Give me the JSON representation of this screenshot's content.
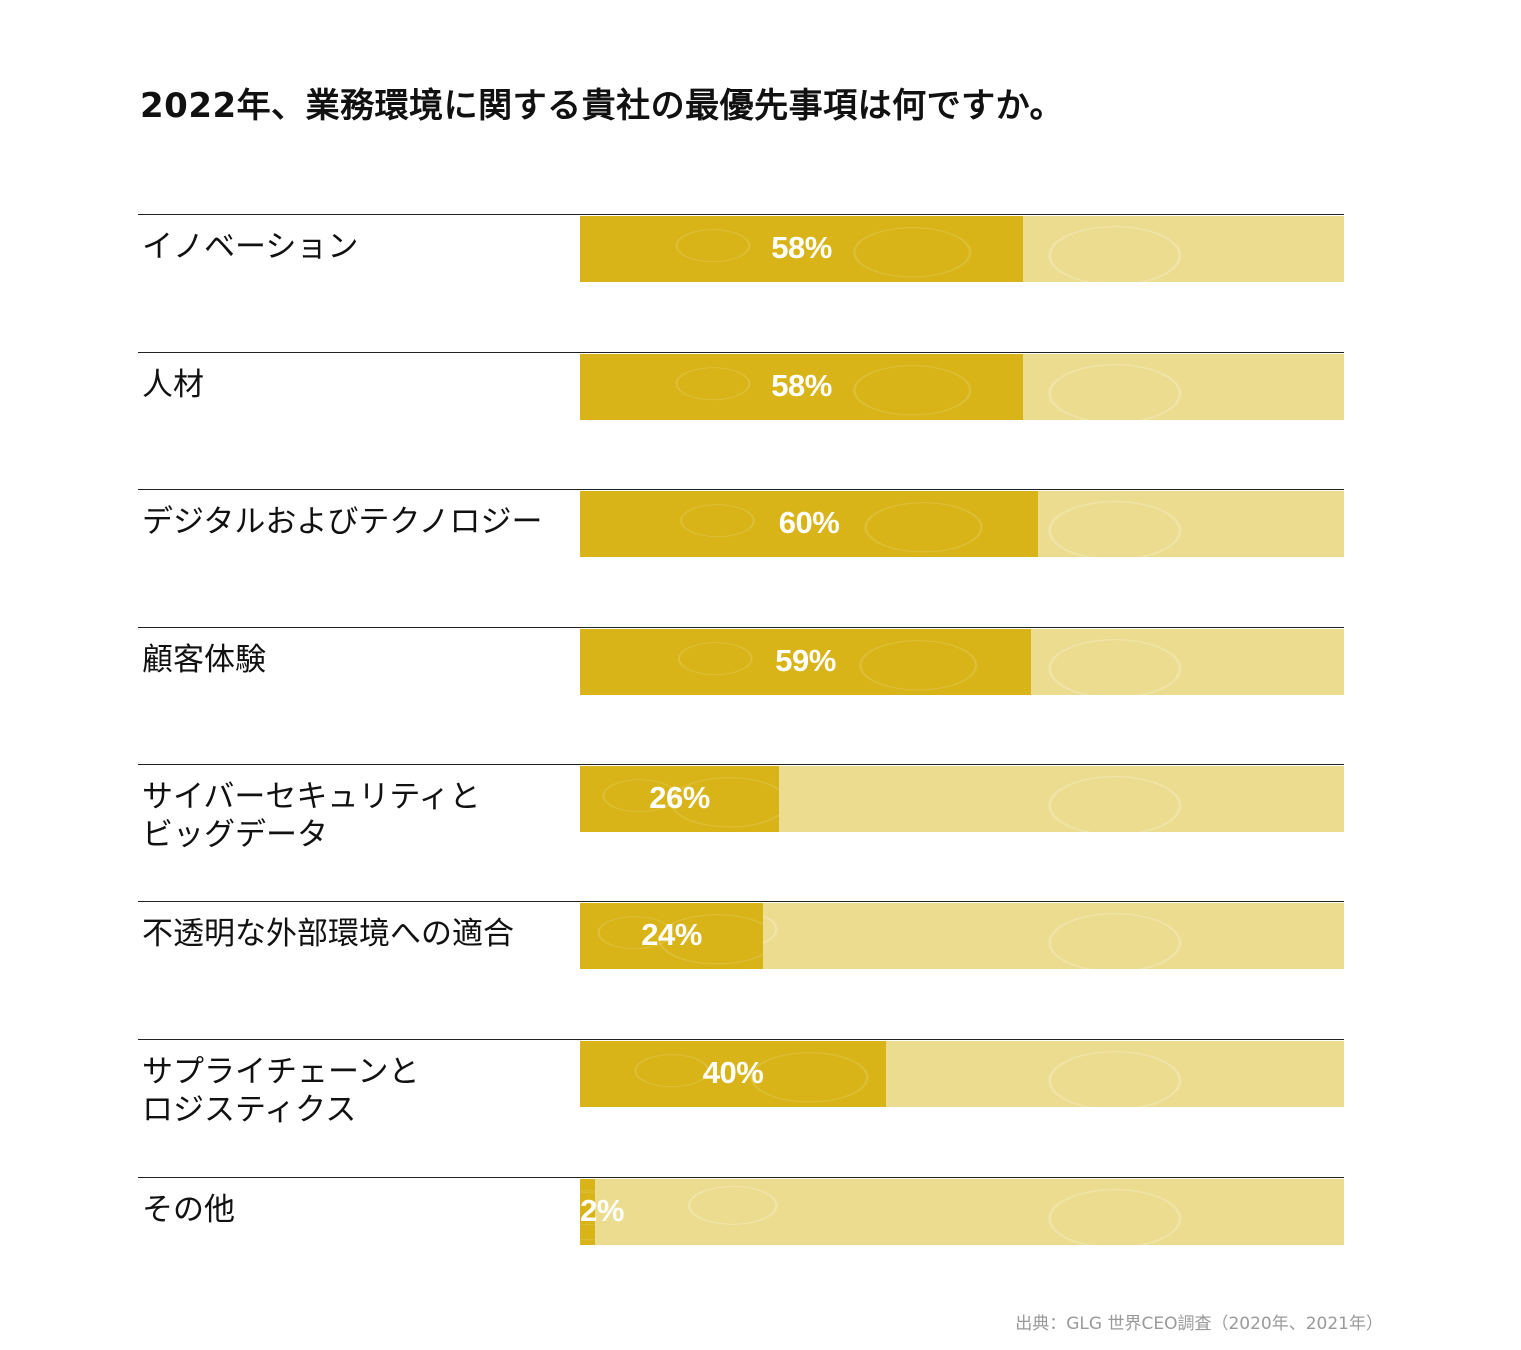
{
  "chart_data": {
    "type": "bar",
    "orientation": "horizontal",
    "title": "2022年、業務環境に関する貴社の最優先事項は何ですか。",
    "categories": [
      "イノベーション",
      "人材",
      "デジタルおよびテクノロジー",
      "顧客体験",
      "サイバーセキュリティと\nビッグデータ",
      "不透明な外部環境への適合",
      "サプライチェーンと\nロジスティクス",
      "その他"
    ],
    "values": [
      58,
      58,
      60,
      59,
      26,
      24,
      40,
      2
    ],
    "value_labels": [
      "58%",
      "58%",
      "60%",
      "59%",
      "26%",
      "24%",
      "40%",
      "2%"
    ],
    "xlim": [
      0,
      100
    ],
    "unit": "%",
    "source": "出典：GLG 世界CEO調査（2020年、2021年）"
  },
  "colors": {
    "fill": "#d8b418",
    "track": "#ecdc8f",
    "rule": "#222222",
    "label_text": "#111111",
    "value_text": "#ffffff",
    "source_text": "#9a9a9a"
  }
}
